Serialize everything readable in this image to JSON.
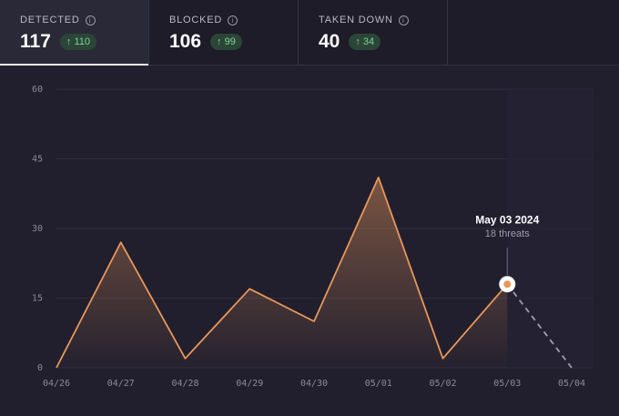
{
  "stats": [
    {
      "label": "DETECTED",
      "value": 117,
      "delta": 110,
      "active": true
    },
    {
      "label": "BLOCKED",
      "value": 106,
      "delta": 99
    },
    {
      "label": "TAKEN DOWN",
      "value": 40,
      "delta": 34
    }
  ],
  "chart_data": {
    "type": "line",
    "categories": [
      "04/26",
      "04/27",
      "04/28",
      "04/29",
      "04/30",
      "05/01",
      "05/02",
      "05/03",
      "05/04"
    ],
    "values": [
      0,
      27,
      2,
      17,
      10,
      41,
      2,
      18,
      0
    ],
    "color": "#e8975a",
    "ylim": [
      0,
      60
    ],
    "yticks": [
      0,
      15,
      30,
      45,
      60
    ],
    "grid": true,
    "tooltip": {
      "category": "05/03",
      "title": "May 03 2024",
      "subtitle": "18 threats"
    }
  }
}
